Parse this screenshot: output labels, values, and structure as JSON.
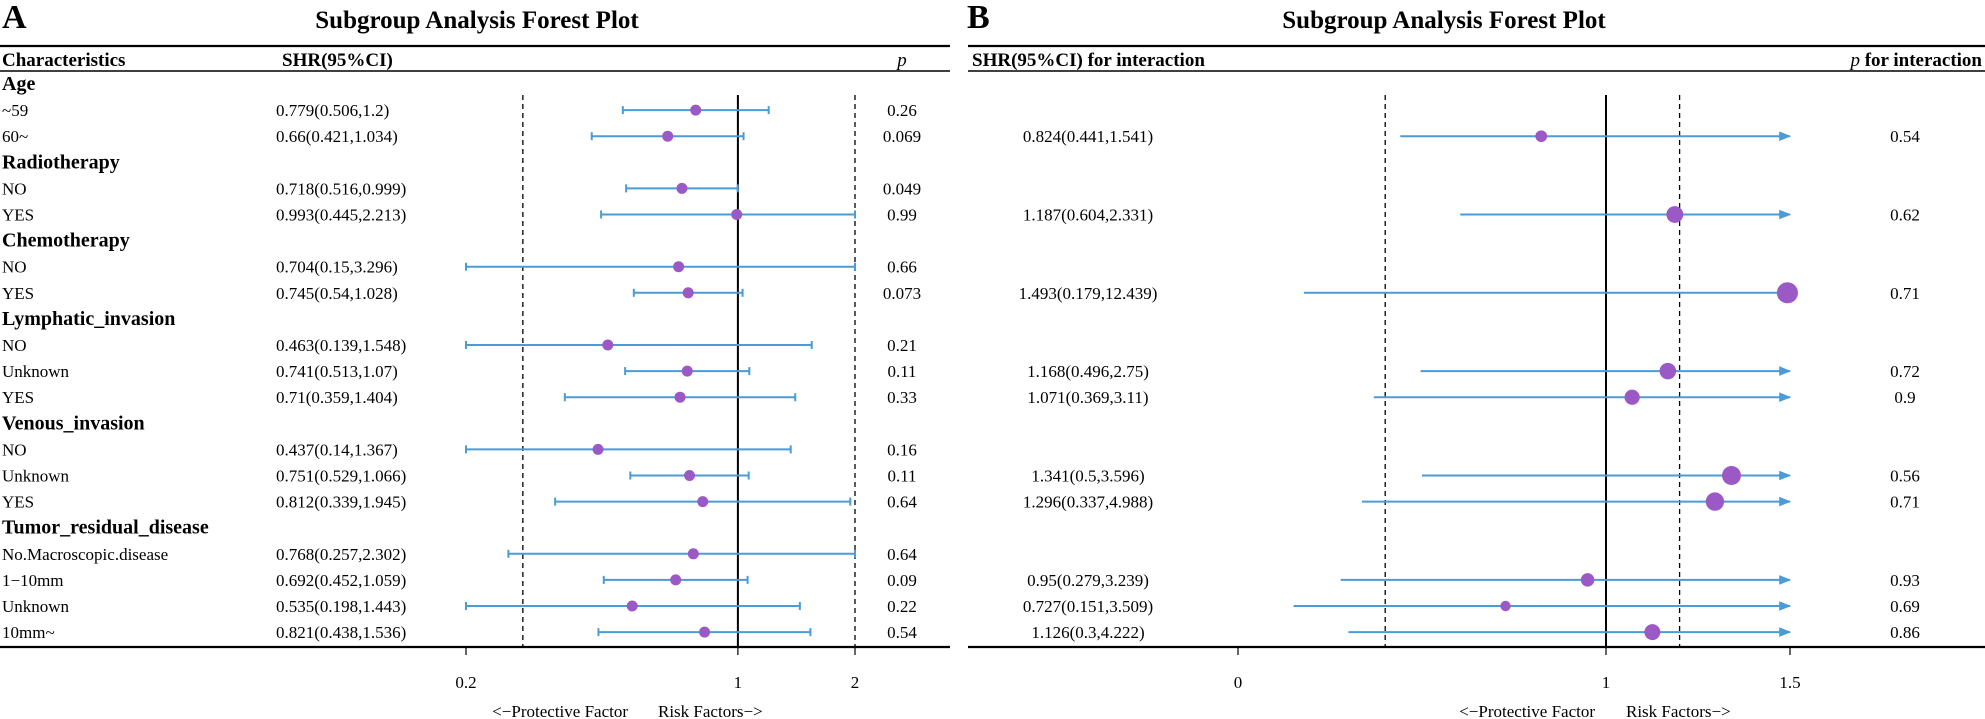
{
  "panels": [
    {
      "letter": "A",
      "title": "Subgroup Analysis Forest Plot",
      "columns": {
        "characteristics": "Characteristics",
        "estimate": "SHR(95%CI)",
        "p_prefix": "",
        "p_suffix": "p"
      },
      "axis_label_left": "<−Protective Factor",
      "axis_label_right": "Risk Factors−>"
    },
    {
      "letter": "B",
      "title": "Subgroup Analysis Forest Plot",
      "columns": {
        "estimate": "SHR(95%CI) for interaction",
        "p_prefix": "p",
        "p_suffix": " for interaction"
      },
      "axis_label_left": "<−Protective Factor",
      "axis_label_right": "Risk Factors−>"
    }
  ],
  "chart_data": [
    {
      "type": "forest",
      "title": "Subgroup Analysis Forest Plot",
      "x_scale": "log",
      "x_ticks": [
        0.2,
        1,
        2
      ],
      "x_tick_labels": [
        "0.2",
        "1",
        "2"
      ],
      "xlim": [
        0.2,
        2.0
      ],
      "reference_line": 1,
      "dashed_lines": [
        0.28,
        2.0
      ],
      "point_color": "#9b59c6",
      "ci_color": "#4a9bd6",
      "rows": [
        {
          "label": "Age",
          "header": true
        },
        {
          "label": "~59",
          "shr": 0.779,
          "lo": 0.506,
          "hi": 1.2,
          "text": "0.779(0.506,1.2)",
          "p": "0.26"
        },
        {
          "label": "60~",
          "shr": 0.66,
          "lo": 0.421,
          "hi": 1.034,
          "text": "0.66(0.421,1.034)",
          "p": "0.069"
        },
        {
          "label": "Radiotherapy",
          "header": true
        },
        {
          "label": "NO",
          "shr": 0.718,
          "lo": 0.516,
          "hi": 0.999,
          "text": "0.718(0.516,0.999)",
          "p": "0.049"
        },
        {
          "label": "YES",
          "shr": 0.993,
          "lo": 0.445,
          "hi": 2.213,
          "text": "0.993(0.445,2.213)",
          "p": "0.99"
        },
        {
          "label": "Chemotherapy",
          "header": true
        },
        {
          "label": "NO",
          "shr": 0.704,
          "lo": 0.15,
          "hi": 3.296,
          "text": "0.704(0.15,3.296)",
          "p": "0.66"
        },
        {
          "label": "YES",
          "shr": 0.745,
          "lo": 0.54,
          "hi": 1.028,
          "text": "0.745(0.54,1.028)",
          "p": "0.073"
        },
        {
          "label": "Lymphatic_invasion",
          "header": true
        },
        {
          "label": "NO",
          "shr": 0.463,
          "lo": 0.139,
          "hi": 1.548,
          "text": "0.463(0.139,1.548)",
          "p": "0.21"
        },
        {
          "label": "Unknown",
          "shr": 0.741,
          "lo": 0.513,
          "hi": 1.07,
          "text": "0.741(0.513,1.07)",
          "p": "0.11"
        },
        {
          "label": "YES",
          "shr": 0.71,
          "lo": 0.359,
          "hi": 1.404,
          "text": "0.71(0.359,1.404)",
          "p": "0.33"
        },
        {
          "label": "Venous_invasion",
          "header": true
        },
        {
          "label": "NO",
          "shr": 0.437,
          "lo": 0.14,
          "hi": 1.367,
          "text": "0.437(0.14,1.367)",
          "p": "0.16"
        },
        {
          "label": "Unknown",
          "shr": 0.751,
          "lo": 0.529,
          "hi": 1.066,
          "text": "0.751(0.529,1.066)",
          "p": "0.11"
        },
        {
          "label": "YES",
          "shr": 0.812,
          "lo": 0.339,
          "hi": 1.945,
          "text": "0.812(0.339,1.945)",
          "p": "0.64"
        },
        {
          "label": "Tumor_residual_disease",
          "header": true
        },
        {
          "label": "No.Macroscopic.disease",
          "shr": 0.768,
          "lo": 0.257,
          "hi": 2.302,
          "text": "0.768(0.257,2.302)",
          "p": "0.64"
        },
        {
          "label": "1−10mm",
          "shr": 0.692,
          "lo": 0.452,
          "hi": 1.059,
          "text": "0.692(0.452,1.059)",
          "p": "0.09"
        },
        {
          "label": "Unknown",
          "shr": 0.535,
          "lo": 0.198,
          "hi": 1.443,
          "text": "0.535(0.198,1.443)",
          "p": "0.22"
        },
        {
          "label": "10mm~",
          "shr": 0.821,
          "lo": 0.438,
          "hi": 1.536,
          "text": "0.821(0.438,1.536)",
          "p": "0.54"
        }
      ]
    },
    {
      "type": "forest",
      "title": "Subgroup Analysis Forest Plot",
      "x_scale": "linear",
      "x_ticks": [
        0,
        1,
        1.5
      ],
      "x_tick_labels": [
        "0",
        "1",
        "1.5"
      ],
      "xlim": [
        0,
        1.5
      ],
      "reference_line": 1,
      "dashed_lines": [
        0.4,
        1.2
      ],
      "point_color": "#9b59c6",
      "ci_color": "#4a9bd6",
      "rows": [
        {
          "header": true
        },
        {},
        {
          "shr": 0.824,
          "lo": 0.441,
          "hi": 1.541,
          "text": "0.824(0.441,1.541)",
          "p": "0.54"
        },
        {
          "header": true
        },
        {},
        {
          "shr": 1.187,
          "lo": 0.604,
          "hi": 2.331,
          "text": "1.187(0.604,2.331)",
          "p": "0.62"
        },
        {
          "header": true
        },
        {},
        {
          "shr": 1.493,
          "lo": 0.179,
          "hi": 12.439,
          "text": "1.493(0.179,12.439)",
          "p": "0.71"
        },
        {
          "header": true
        },
        {},
        {
          "shr": 1.168,
          "lo": 0.496,
          "hi": 2.75,
          "text": "1.168(0.496,2.75)",
          "p": "0.72"
        },
        {
          "shr": 1.071,
          "lo": 0.369,
          "hi": 3.11,
          "text": "1.071(0.369,3.11)",
          "p": "0.9"
        },
        {
          "header": true
        },
        {},
        {
          "shr": 1.341,
          "lo": 0.5,
          "hi": 3.596,
          "text": "1.341(0.5,3.596)",
          "p": "0.56"
        },
        {
          "shr": 1.296,
          "lo": 0.337,
          "hi": 4.988,
          "text": "1.296(0.337,4.988)",
          "p": "0.71"
        },
        {
          "header": true
        },
        {},
        {
          "shr": 0.95,
          "lo": 0.279,
          "hi": 3.239,
          "text": "0.95(0.279,3.239)",
          "p": "0.93"
        },
        {
          "shr": 0.727,
          "lo": 0.151,
          "hi": 3.509,
          "text": "0.727(0.151,3.509)",
          "p": "0.69"
        },
        {
          "shr": 1.126,
          "lo": 0.3,
          "hi": 4.222,
          "text": "1.126(0.3,4.222)",
          "p": "0.86"
        }
      ]
    }
  ]
}
